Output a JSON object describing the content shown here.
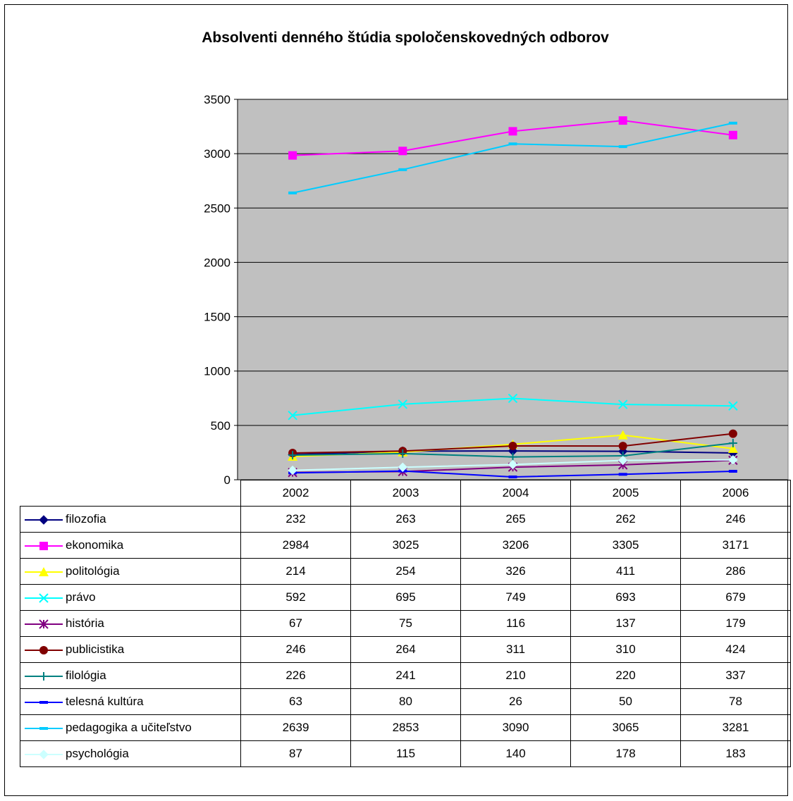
{
  "chart_data": {
    "type": "line",
    "title": "Absolventi denného štúdia spoločenskovedných odborov",
    "categories": [
      "2002",
      "2003",
      "2004",
      "2005",
      "2006"
    ],
    "ylim": [
      0,
      3500
    ],
    "yticks": [
      "0",
      "500",
      "1000",
      "1500",
      "2000",
      "2500",
      "3000",
      "3500"
    ],
    "grid": true,
    "legend": "data table below plot",
    "series": [
      {
        "name": "filozofia",
        "color": "#000080",
        "marker": "diamond",
        "values": [
          232,
          263,
          265,
          262,
          246
        ]
      },
      {
        "name": "ekonomika",
        "color": "#FF00FF",
        "marker": "square",
        "values": [
          2984,
          3025,
          3206,
          3305,
          3171
        ]
      },
      {
        "name": "politológia",
        "color": "#FFFF00",
        "marker": "triangle",
        "values": [
          214,
          254,
          326,
          411,
          286
        ]
      },
      {
        "name": "právo",
        "color": "#00FFFF",
        "marker": "x",
        "values": [
          592,
          695,
          749,
          693,
          679
        ]
      },
      {
        "name": "história",
        "color": "#800080",
        "marker": "star",
        "values": [
          67,
          75,
          116,
          137,
          179
        ]
      },
      {
        "name": "publicistika",
        "color": "#800000",
        "marker": "circle",
        "values": [
          246,
          264,
          311,
          310,
          424
        ]
      },
      {
        "name": "filológia",
        "color": "#008080",
        "marker": "plus",
        "values": [
          226,
          241,
          210,
          220,
          337
        ]
      },
      {
        "name": "telesná kultúra",
        "color": "#0000FF",
        "marker": "dash",
        "values": [
          63,
          80,
          26,
          50,
          78
        ]
      },
      {
        "name": "pedagogika a učiteľstvo",
        "color": "#00CCFF",
        "marker": "dash",
        "values": [
          2639,
          2853,
          3090,
          3065,
          3281
        ]
      },
      {
        "name": "psychológia",
        "color": "#CCFFFF",
        "marker": "diamond",
        "values": [
          87,
          115,
          140,
          178,
          183
        ]
      }
    ]
  },
  "colors": {
    "plot_background": "#C0C0C0",
    "gridline": "#000000"
  }
}
